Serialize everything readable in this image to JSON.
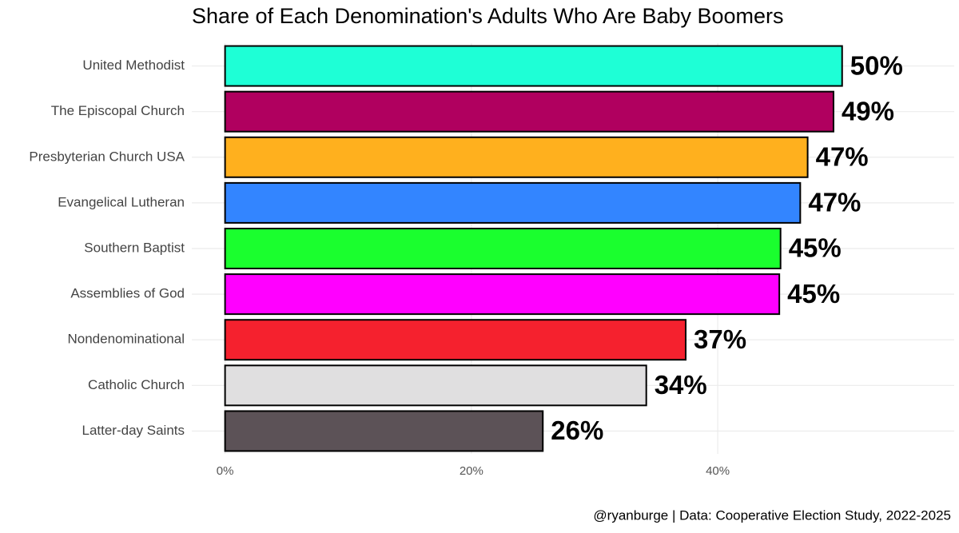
{
  "chart_data": {
    "type": "barh",
    "title": "Share of Each Denomination's Adults Who Are Baby Boomers",
    "caption": "@ryanburge | Data: Cooperative Election Study, 2022-2025",
    "categories": [
      "United Methodist",
      "The Episcopal Church",
      "Presbyterian Church USA",
      "Evangelical Lutheran",
      "Southern Baptist",
      "Assemblies of God",
      "Nondenominational",
      "Catholic Church",
      "Latter-day Saints"
    ],
    "values": [
      50.1,
      49.4,
      47.3,
      46.7,
      45.1,
      45.0,
      37.4,
      34.2,
      25.8
    ],
    "value_labels": [
      "50%",
      "49%",
      "47%",
      "47%",
      "45%",
      "45%",
      "37%",
      "34%",
      "26%"
    ],
    "colors": [
      "#1effd6",
      "#b0005f",
      "#ffb01e",
      "#3385ff",
      "#1aff2e",
      "#ff00ff",
      "#f5212e",
      "#e0dfe0",
      "#5c5257"
    ],
    "xlim": [
      -2.7,
      59.2
    ],
    "xticks": [
      {
        "value": 0,
        "label": "0%"
      },
      {
        "value": 20,
        "label": "20%"
      },
      {
        "value": 40,
        "label": "40%"
      }
    ],
    "grid": true
  }
}
